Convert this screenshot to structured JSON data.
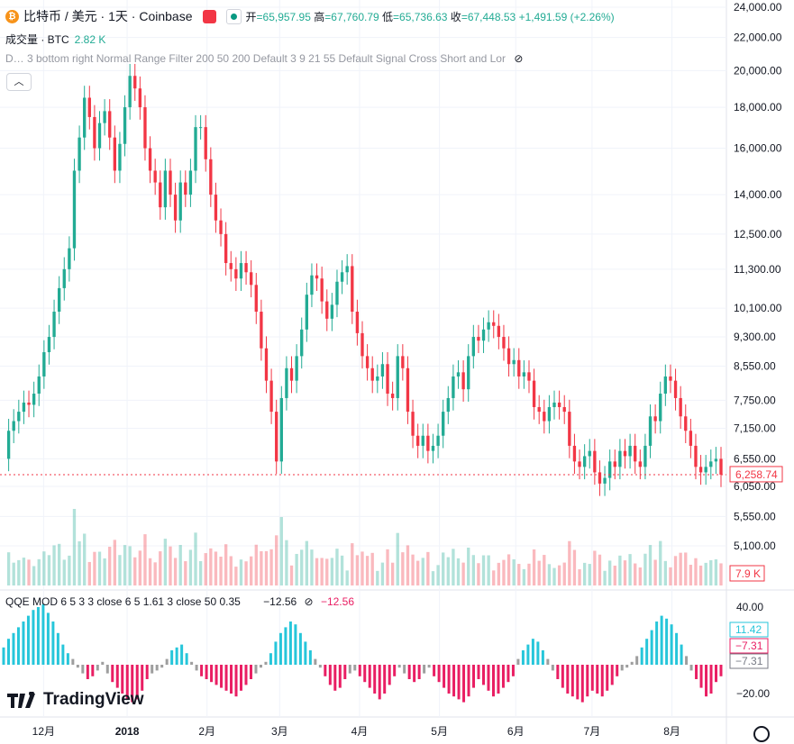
{
  "header": {
    "symbol": "比特币 / 美元 · 1天 · Coinbase",
    "open_label": "开",
    "open": "=65,957.95",
    "high_label": "高",
    "high": "=67,760.79",
    "low_label": "低",
    "low": "=65,736.63",
    "close_label": "收",
    "close": "=67,448.53",
    "change": "+1,491.59 (+2.26%)",
    "volume_label": "成交量 · BTC",
    "volume_value": "2.82 K",
    "indicator_line": "D… 3 bottom right Normal Range Filter 200 50 200 Default 3 9 21 55 Default Signal Cross Short and Lor"
  },
  "qqe": {
    "label": "QQE MOD 6 5 3 3 close 6 5 1.61 3 close 50 0.35",
    "value1": "−12.56",
    "value2": "−12.56"
  },
  "colors": {
    "up": "#22ab94",
    "down": "#f23645",
    "qqe_up": "#26c6da",
    "qqe_down": "#e91e63",
    "qqe_neutral": "#9e9e9e"
  },
  "logo": "TradingView",
  "chart_data": {
    "type": "candlestick",
    "y_scale": "log",
    "y_ticks": [
      "24,000.00",
      "22,000.00",
      "20,000.00",
      "18,000.00",
      "16,000.00",
      "14,000.00",
      "12,500.00",
      "11,300.00",
      "10,100.00",
      "9,300.00",
      "8,550.00",
      "7,750.00",
      "7,150.00",
      "6,550.00",
      "6,050.00",
      "5,550.00",
      "5,100.00"
    ],
    "x_ticks": [
      "12月",
      "2018",
      "2月",
      "3月",
      "4月",
      "5月",
      "6月",
      "7月",
      "8月"
    ],
    "last_price": "6,258.74",
    "volume_last": "7.9 K",
    "qqe_ticks": [
      "40.00",
      "−20.00"
    ],
    "qqe_badges": [
      "11.42",
      "−7.31",
      "−7.31"
    ],
    "price_series": [
      6550,
      7100,
      7300,
      7500,
      7700,
      7650,
      7900,
      8300,
      8900,
      9300,
      10000,
      10700,
      11300,
      12000,
      15000,
      16500,
      18500,
      17500,
      16000,
      17200,
      17800,
      16500,
      15000,
      16200,
      18000,
      19700,
      19000,
      18000,
      16000,
      15000,
      14500,
      13500,
      15000,
      14000,
      13000,
      14500,
      14000,
      15000,
      17000,
      17000,
      15500,
      14000,
      13000,
      12500,
      11500,
      11300,
      11000,
      11500,
      11200,
      10800,
      10000,
      9000,
      8200,
      7500,
      6500,
      7800,
      8500,
      8200,
      8800,
      9500,
      10500,
      11100,
      11000,
      10300,
      9800,
      10200,
      10900,
      11200,
      11400,
      10000,
      9400,
      8800,
      8500,
      8200,
      8300,
      8600,
      7900,
      7800,
      8800,
      8500,
      7500,
      7000,
      6800,
      7000,
      6700,
      6800,
      7000,
      7500,
      7800,
      8300,
      8400,
      8000,
      8800,
      9300,
      9200,
      9500,
      9700,
      9600,
      9300,
      9000,
      8600,
      8700,
      8300,
      8400,
      8200,
      7600,
      7500,
      7300,
      7600,
      7700,
      7600,
      7500,
      6800,
      6500,
      6400,
      6600,
      6700,
      6300,
      6100,
      6200,
      6500,
      6400,
      6700,
      6600,
      6800,
      6500,
      6400,
      6800,
      7400,
      7300,
      7900,
      8300,
      8200,
      7800,
      7400,
      7100,
      6800,
      6400,
      6300,
      6400,
      6500,
      6550,
      6258.74
    ],
    "qqe_series": [
      12,
      18,
      22,
      26,
      30,
      34,
      38,
      40,
      42,
      36,
      30,
      22,
      14,
      8,
      4,
      -2,
      -6,
      -10,
      -8,
      -4,
      2,
      -6,
      -12,
      -16,
      -20,
      -24,
      -26,
      -24,
      -18,
      -10,
      -6,
      -4,
      -2,
      4,
      10,
      12,
      14,
      8,
      2,
      -4,
      -8,
      -10,
      -12,
      -14,
      -16,
      -18,
      -20,
      -22,
      -18,
      -14,
      -10,
      -6,
      -2,
      2,
      8,
      16,
      22,
      26,
      30,
      28,
      22,
      16,
      10,
      4,
      -2,
      -8,
      -14,
      -18,
      -16,
      -10,
      -6,
      -4,
      -8,
      -12,
      -16,
      -20,
      -24,
      -20,
      -14,
      -8,
      -2,
      -6,
      -10,
      -12,
      -10,
      -6,
      -2,
      -8,
      -12,
      -16,
      -20,
      -22,
      -24,
      -26,
      -22,
      -16,
      -10,
      -14,
      -18,
      -22,
      -20,
      -16,
      -12,
      -8,
      4,
      10,
      14,
      18,
      16,
      10,
      4,
      -4,
      -10,
      -16,
      -20,
      -22,
      -24,
      -26,
      -22,
      -18,
      -20,
      -22,
      -18,
      -14,
      -8,
      -4,
      -2,
      2,
      6,
      12,
      18,
      24,
      30,
      34,
      32,
      28,
      22,
      14,
      6,
      -4,
      -10,
      -16,
      -22,
      -20,
      -12,
      -8
    ]
  }
}
